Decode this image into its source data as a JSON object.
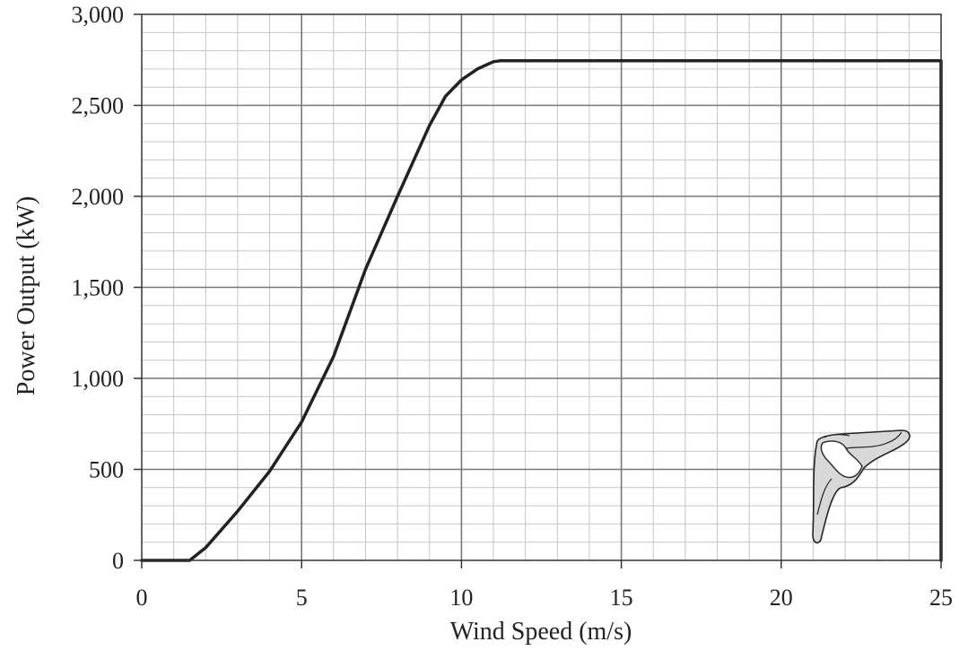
{
  "chart_data": {
    "type": "line",
    "title": "",
    "xlabel": "Wind Speed (m/s)",
    "ylabel": "Power Output (kW)",
    "xlim": [
      0,
      25
    ],
    "ylim": [
      0,
      3000
    ],
    "x_ticks": [
      0,
      5,
      10,
      15,
      20,
      25
    ],
    "x_tick_labels": [
      "0",
      "5",
      "10",
      "15",
      "20",
      "25"
    ],
    "y_ticks": [
      0,
      500,
      1000,
      1500,
      2000,
      2500,
      3000
    ],
    "y_tick_labels": [
      "0",
      "500",
      "1,000",
      "1,500",
      "2,000",
      "2,500",
      "3,000"
    ],
    "x_minor_step": 1,
    "y_minor_step": 100,
    "grid": true,
    "series": [
      {
        "x": [
          0,
          1.5,
          2,
          3,
          4,
          5,
          6,
          7,
          8,
          9,
          9.5,
          10,
          10.5,
          11,
          11.2,
          25,
          25
        ],
        "y": [
          0,
          0,
          70,
          270,
          490,
          760,
          1120,
          1600,
          2000,
          2390,
          2550,
          2640,
          2700,
          2740,
          2745,
          2745,
          0
        ]
      }
    ],
    "colors": {
      "line": "#222222",
      "grid_major": "#777777",
      "grid_minor": "#c4c4c4"
    },
    "icon": "turbine-blade-icon"
  }
}
